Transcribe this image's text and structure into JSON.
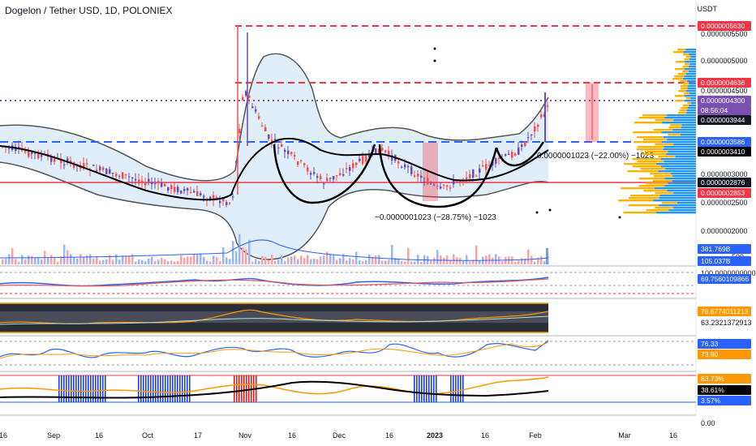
{
  "header": {
    "title": "Dogelon / Tether USD, 1D, POLONIEX",
    "price_unit": "USDT"
  },
  "price_axis": {
    "ticks": [
      "0.0000005500",
      "0.0000005000",
      "0.0000004500",
      "0.0000003000",
      "0.0000002500",
      "0.0000002000"
    ],
    "badges": [
      {
        "text": "0.0000005630",
        "color": "#f23645"
      },
      {
        "text": "0.0000004636",
        "color": "#f23645"
      },
      {
        "text": "0.0000004300",
        "color": "#7b4fb0"
      },
      {
        "text": "08:56:04",
        "color": "#7b4fb0"
      },
      {
        "text": "0.0000003944",
        "color": "#131722"
      },
      {
        "text": "0.0000003586",
        "color": "#2962ff"
      },
      {
        "text": "0.0000003410",
        "color": "#000000"
      },
      {
        "text": "0.0000002876",
        "color": "#131722"
      },
      {
        "text": "0.0000002853",
        "color": "#f23645"
      }
    ]
  },
  "volume_axis": {
    "badges": [
      {
        "text": "381.769B",
        "color": "#2962ff"
      },
      {
        "text": "105.037B",
        "color": "#2962ff"
      }
    ],
    "tick": "500"
  },
  "indicators": {
    "ind1": {
      "top_label": "100.0000000000",
      "badge": "69.7560109866",
      "badge_color": "#2962ff"
    },
    "ind2": {
      "badge": "76.6774011213",
      "badge_color": "#ff9800",
      "value": "63.2321372913"
    },
    "ind3": {
      "badge1": "76.33",
      "badge1_color": "#2962ff",
      "badge2": "73.90",
      "badge2_color": "#ff9800"
    },
    "ind4": {
      "badge1": "83.73%",
      "badge1_color": "#ff9800",
      "badge2": "38.61%",
      "badge2_color": "#000000",
      "badge3": "3.57%",
      "badge3_color": "#2962ff",
      "bottom": "0.00"
    }
  },
  "measurements": {
    "upper": "0.0000001023 (−22.00%) −1023",
    "lower": "−0.0000001023 (−28.75%) −1023"
  },
  "time_axis": [
    "16",
    "Sep",
    "16",
    "Oct",
    "17",
    "Nov",
    "16",
    "Dec",
    "16",
    "2023",
    "16",
    "Feb",
    "Mar",
    "16"
  ],
  "colors": {
    "bull": "#26a69a",
    "bear": "#ef5350",
    "blue": "#2962ff",
    "red": "#f23645",
    "purple": "#7b4fb0",
    "band_fill": "#d6e8f7"
  }
}
